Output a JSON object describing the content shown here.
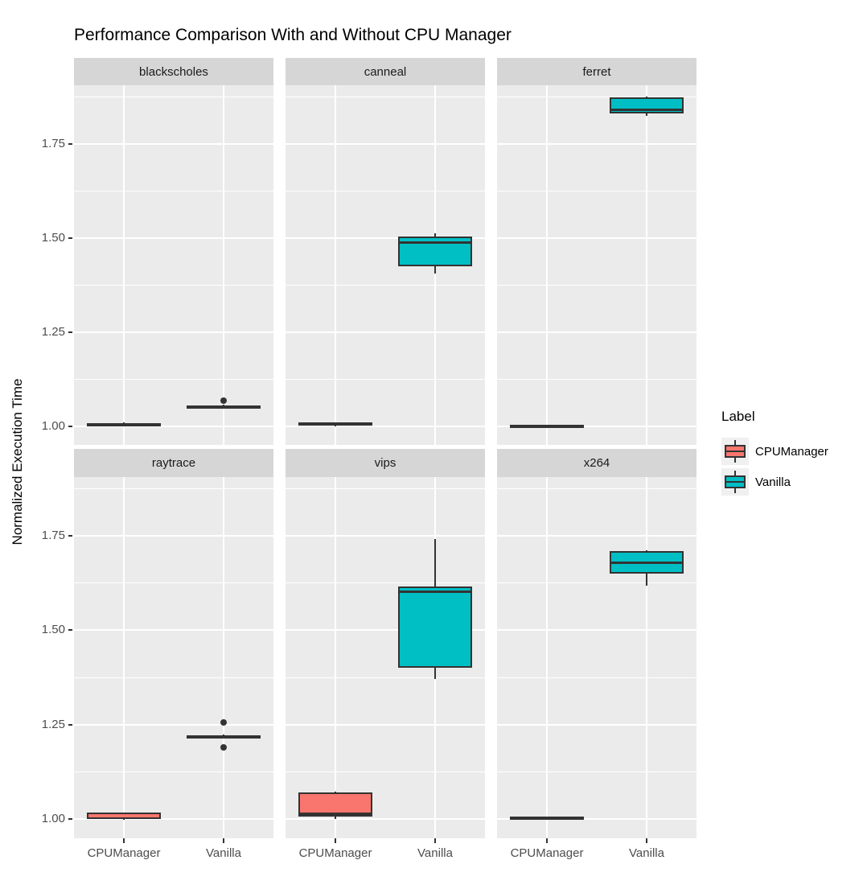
{
  "title": "Performance Comparison With and Without CPU Manager",
  "y_axis": {
    "title": "Normalized Execution Time"
  },
  "legend": {
    "title": "Label",
    "entries": [
      {
        "label": "CPUManager",
        "color": "#F8766D"
      },
      {
        "label": "Vanilla",
        "color": "#00BFC4"
      }
    ]
  },
  "colors": {
    "panel_bg": "#EBEBEB",
    "strip_bg": "#D6D6D6",
    "gridline": "#FFFFFF",
    "box_stroke": "#333333",
    "cpumanager_fill": "#F8766D",
    "vanilla_fill": "#00BFC4",
    "tick_text": "#4D4D4D",
    "legend_key_bg": "#F0F0F0"
  },
  "chart_data": {
    "type": "boxplot",
    "title": "Performance Comparison With and Without CPU Manager",
    "xlabel": "",
    "ylabel": "Normalized Execution Time",
    "ylim": [
      0.95,
      1.905
    ],
    "yticks": [
      1.0,
      1.25,
      1.5,
      1.75
    ],
    "ytick_labels": [
      "1.00",
      "1.25",
      "1.50",
      "1.75"
    ],
    "minor_gridlines": [
      1.125,
      1.375,
      1.625,
      1.875
    ],
    "grid": true,
    "legend_position": "right",
    "legend_title": "Label",
    "categories": [
      "CPUManager",
      "Vanilla"
    ],
    "series_colors": {
      "CPUManager": "#F8766D",
      "Vanilla": "#00BFC4"
    },
    "facets": [
      {
        "name": "blackscholes",
        "boxes": [
          {
            "group": "CPUManager",
            "lo": 1.002,
            "q1": 1.003,
            "med": 1.005,
            "q3": 1.008,
            "hi": 1.009,
            "outliers": []
          },
          {
            "group": "Vanilla",
            "lo": 1.047,
            "q1": 1.049,
            "med": 1.052,
            "q3": 1.055,
            "hi": 1.057,
            "outliers": [
              1.068
            ]
          }
        ]
      },
      {
        "name": "canneal",
        "boxes": [
          {
            "group": "CPUManager",
            "lo": 1.0,
            "q1": 1.002,
            "med": 1.005,
            "q3": 1.009,
            "hi": 1.01,
            "outliers": []
          },
          {
            "group": "Vanilla",
            "lo": 1.405,
            "q1": 1.425,
            "med": 1.487,
            "q3": 1.503,
            "hi": 1.512,
            "outliers": []
          }
        ]
      },
      {
        "name": "ferret",
        "boxes": [
          {
            "group": "CPUManager",
            "lo": 0.998,
            "q1": 0.999,
            "med": 1.001,
            "q3": 1.003,
            "hi": 1.004,
            "outliers": []
          },
          {
            "group": "Vanilla",
            "lo": 1.824,
            "q1": 1.83,
            "med": 1.84,
            "q3": 1.872,
            "hi": 1.876,
            "outliers": []
          }
        ]
      },
      {
        "name": "raytrace",
        "boxes": [
          {
            "group": "CPUManager",
            "lo": 0.998,
            "q1": 1.0,
            "med": 1.004,
            "q3": 1.018,
            "hi": 1.019,
            "outliers": []
          },
          {
            "group": "Vanilla",
            "lo": 1.216,
            "q1": 1.217,
            "med": 1.22,
            "q3": 1.223,
            "hi": 1.225,
            "outliers": [
              1.256,
              1.191
            ]
          }
        ]
      },
      {
        "name": "vips",
        "boxes": [
          {
            "group": "CPUManager",
            "lo": 1.0,
            "q1": 1.008,
            "med": 1.015,
            "q3": 1.072,
            "hi": 1.073,
            "outliers": []
          },
          {
            "group": "Vanilla",
            "lo": 1.372,
            "q1": 1.4,
            "med": 1.602,
            "q3": 1.615,
            "hi": 1.742,
            "outliers": []
          }
        ]
      },
      {
        "name": "x264",
        "boxes": [
          {
            "group": "CPUManager",
            "lo": 1.0,
            "q1": 1.001,
            "med": 1.004,
            "q3": 1.007,
            "hi": 1.008,
            "outliers": []
          },
          {
            "group": "Vanilla",
            "lo": 1.618,
            "q1": 1.65,
            "med": 1.678,
            "q3": 1.71,
            "hi": 1.712,
            "outliers": []
          }
        ]
      }
    ]
  }
}
